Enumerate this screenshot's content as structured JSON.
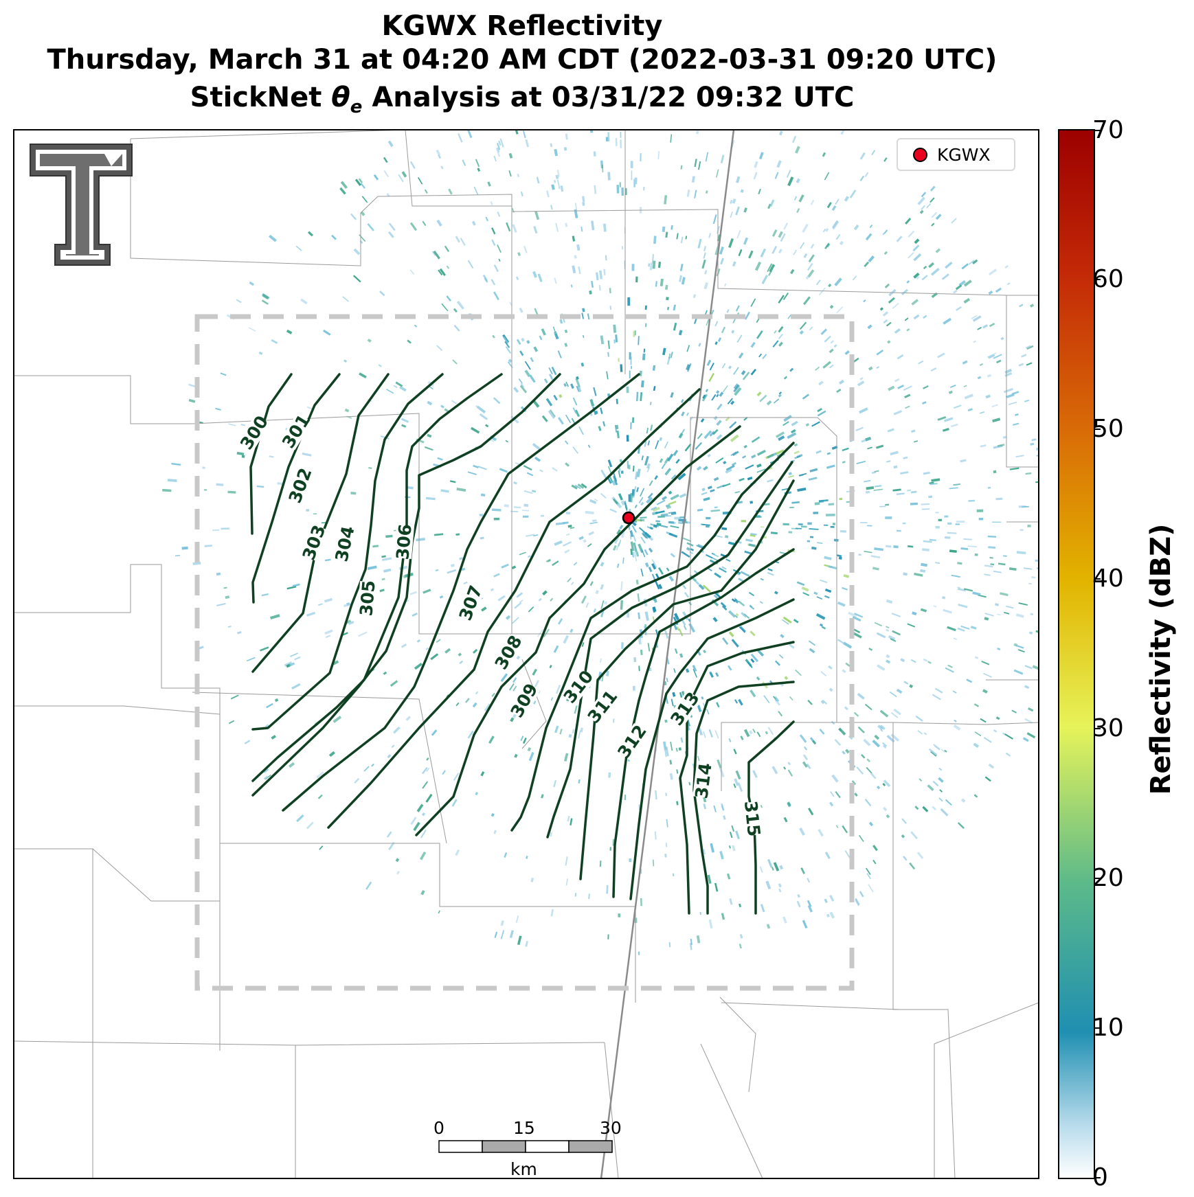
{
  "title": {
    "line1": "KGWX Reflectivity",
    "line2": "Thursday, March 31 at 04:20 AM CDT (2022-03-31 09:20 UTC)",
    "line3_prefix": "StickNet ",
    "line3_symbol": "θ",
    "line3_sub": "e",
    "line3_suffix": " Analysis at 03/31/22 09:32 UTC"
  },
  "legend": {
    "label": "KGWX"
  },
  "colorbar": {
    "label": "Reflectivity (dBZ)",
    "ticks": [
      "0",
      "10",
      "20",
      "30",
      "40",
      "50",
      "60",
      "70"
    ],
    "colors": [
      "#ffffff",
      "#1f8fb1",
      "#5bb98a",
      "#e6f35a",
      "#e2b400",
      "#d96d07",
      "#c42a07",
      "#9c0000"
    ]
  },
  "scalebar": {
    "ticks": [
      "0",
      "15",
      "30"
    ],
    "unit": "km"
  },
  "contour_color": "#0e4021",
  "contour_labels": [
    "300",
    "301",
    "302",
    "303",
    "304",
    "305",
    "306",
    "307",
    "308",
    "309",
    "310",
    "311",
    "312",
    "313",
    "314",
    "315"
  ]
}
